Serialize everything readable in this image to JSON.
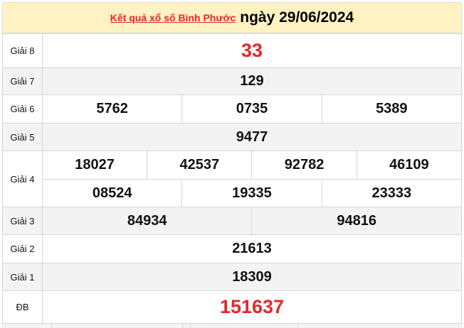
{
  "header": {
    "link": "Kết quả xổ số Bình Phước",
    "date": "ngày 29/06/2024"
  },
  "rows": [
    {
      "label": "Giải 8",
      "values": [
        "33"
      ]
    },
    {
      "label": "Giải 7",
      "values": [
        "129"
      ]
    },
    {
      "label": "Giải 6",
      "values": [
        "5762",
        "0735",
        "5389"
      ]
    },
    {
      "label": "Giải 5",
      "values": [
        "9477"
      ]
    },
    {
      "label": "Giải 4",
      "values": [
        "18027",
        "42537",
        "92782",
        "46109",
        "08524",
        "19335",
        "23333"
      ]
    },
    {
      "label": "Giải 3",
      "values": [
        "84934",
        "94816"
      ]
    },
    {
      "label": "Giải 2",
      "values": [
        "21613"
      ]
    },
    {
      "label": "Giải 1",
      "values": [
        "18309"
      ]
    },
    {
      "label": "ĐB",
      "values": [
        "151637"
      ]
    }
  ],
  "colors": {
    "accent": "#e8262a",
    "header_bg": "#fff2c2"
  }
}
